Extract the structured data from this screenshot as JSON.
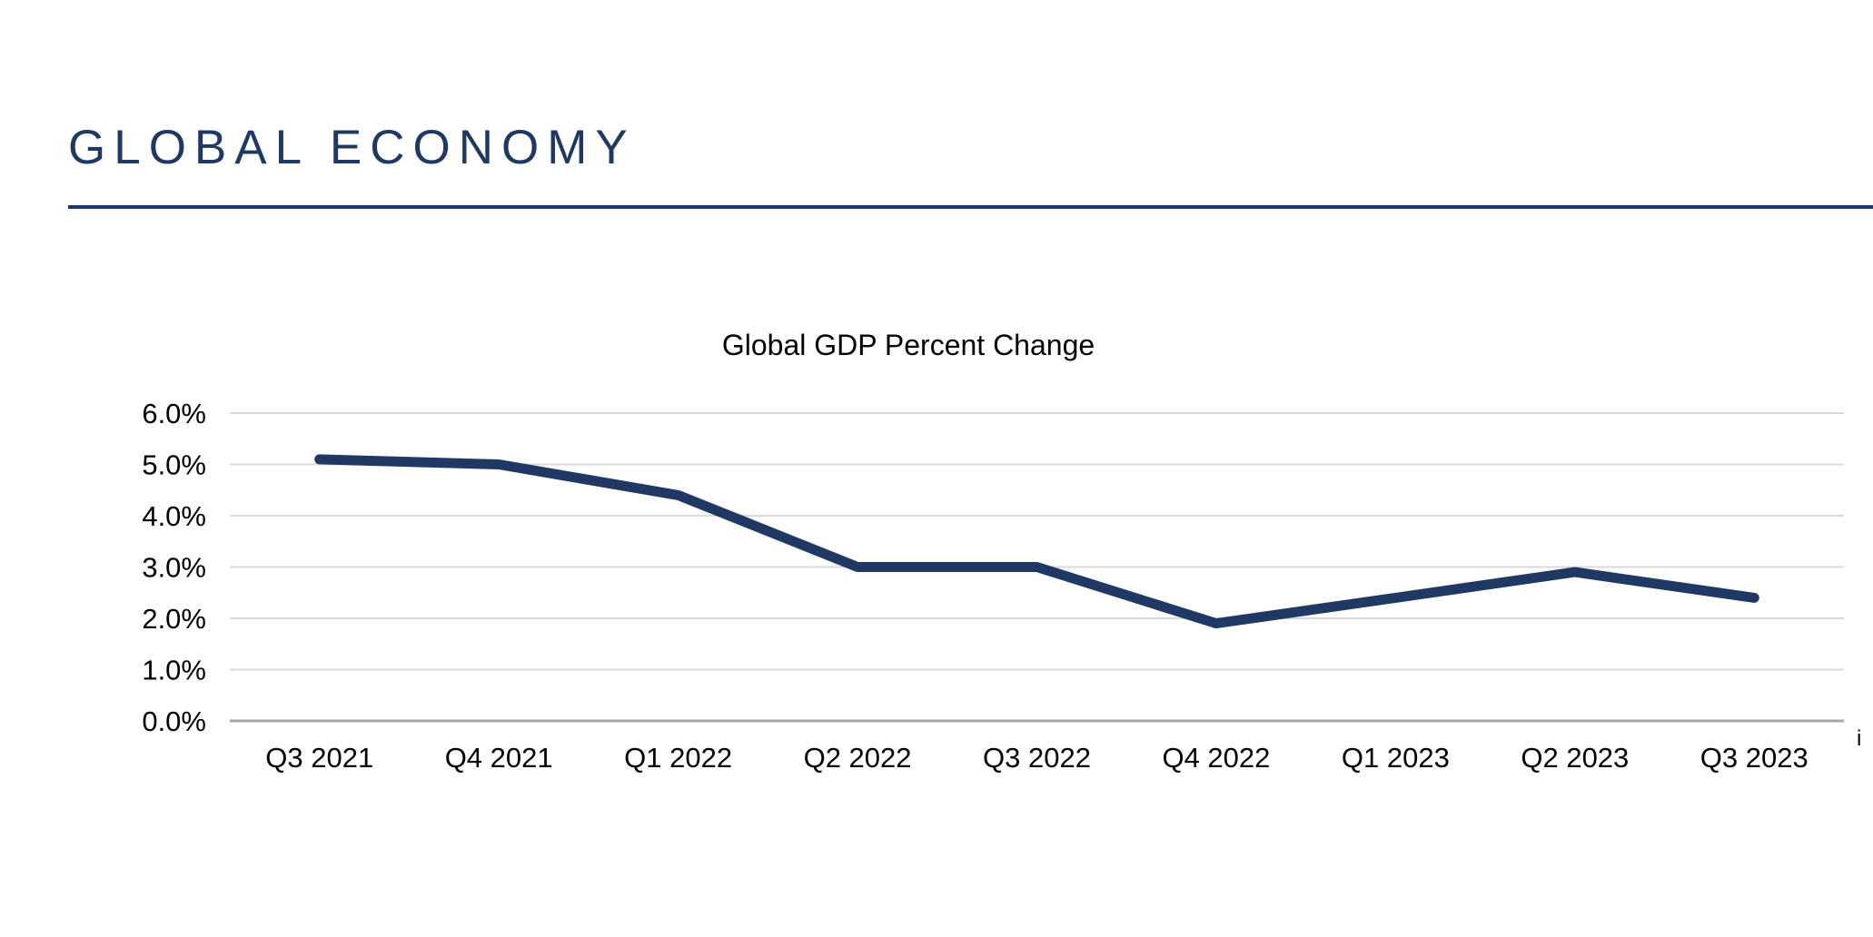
{
  "header": {
    "title": "GLOBAL ECONOMY"
  },
  "footnote_marker": "i",
  "theme": {
    "accent_navy": "#1F3864",
    "line_color": "#1F3864",
    "gridline_color": "#D9D9D9",
    "axis_line_color": "#A6A6A6",
    "text_color": "#000000",
    "background": "#FFFFFF"
  },
  "chart_data": {
    "type": "line",
    "title": "Global GDP Percent Change",
    "categories": [
      "Q3 2021",
      "Q4 2021",
      "Q1 2022",
      "Q2 2022",
      "Q3 2022",
      "Q4 2022",
      "Q1 2023",
      "Q2 2023",
      "Q3 2023"
    ],
    "series": [
      {
        "name": "Global GDP Percent Change",
        "values": [
          5.1,
          5.0,
          4.4,
          3.0,
          3.0,
          1.9,
          2.4,
          2.9,
          2.4
        ]
      }
    ],
    "xlabel": "",
    "ylabel": "",
    "ylim": [
      0,
      6
    ],
    "yticks": [
      {
        "value": 6,
        "label": "6.0%"
      },
      {
        "value": 5,
        "label": "5.0%"
      },
      {
        "value": 4,
        "label": "4.0%"
      },
      {
        "value": 3,
        "label": "3.0%"
      },
      {
        "value": 2,
        "label": "2.0%"
      },
      {
        "value": 1,
        "label": "1.0%"
      },
      {
        "value": 0,
        "label": "0.0%"
      }
    ],
    "grid": "horizontal",
    "legend": "none"
  }
}
